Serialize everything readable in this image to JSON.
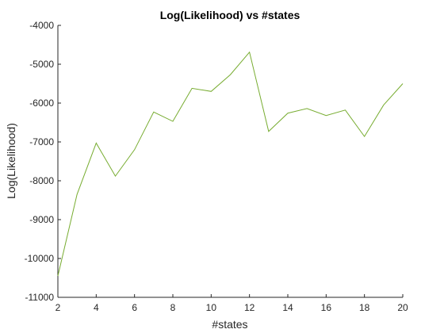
{
  "chart_data": {
    "type": "line",
    "title": "Log(Likelihood) vs #states",
    "xlabel": "#states",
    "ylabel": "Log(Likelihood)",
    "xlim": [
      2,
      20
    ],
    "ylim": [
      -11000,
      -4000
    ],
    "xticks": [
      2,
      4,
      6,
      8,
      10,
      12,
      14,
      16,
      18,
      20
    ],
    "yticks": [
      -11000,
      -10000,
      -9000,
      -8000,
      -7000,
      -6000,
      -5000,
      -4000
    ],
    "grid": false,
    "series": [
      {
        "color": "#77ac30",
        "x": [
          2,
          3,
          4,
          5,
          6,
          7,
          8,
          9,
          10,
          11,
          12,
          13,
          14,
          15,
          16,
          17,
          18,
          19,
          20
        ],
        "y": [
          -10450,
          -8350,
          -7030,
          -7880,
          -7200,
          -6230,
          -6470,
          -5620,
          -5700,
          -5270,
          -4690,
          -6730,
          -6260,
          -6140,
          -6320,
          -6180,
          -6860,
          -6050,
          -5500
        ]
      }
    ]
  }
}
